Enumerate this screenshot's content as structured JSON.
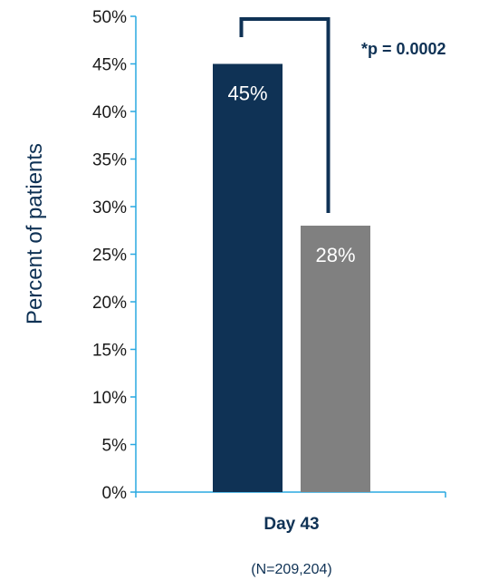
{
  "chart_data": {
    "type": "bar",
    "categories": [
      "Day 43"
    ],
    "series": [
      {
        "values": [
          45
        ],
        "color": "#0f3255"
      },
      {
        "values": [
          28
        ],
        "color": "#808080"
      }
    ],
    "data_labels": [
      "45%",
      "28%"
    ],
    "ylabel": "Percent of patients",
    "ylim": [
      0,
      50
    ],
    "yticks": [
      "0%",
      "5%",
      "10%",
      "15%",
      "20%",
      "25%",
      "30%",
      "35%",
      "40%",
      "45%",
      "50%"
    ],
    "category_note": "(N=209,204)",
    "annotation": "*p = 0.0002",
    "grid": false,
    "colors": {
      "axis": "#29a8e0",
      "bracket": "#0f3255"
    }
  }
}
